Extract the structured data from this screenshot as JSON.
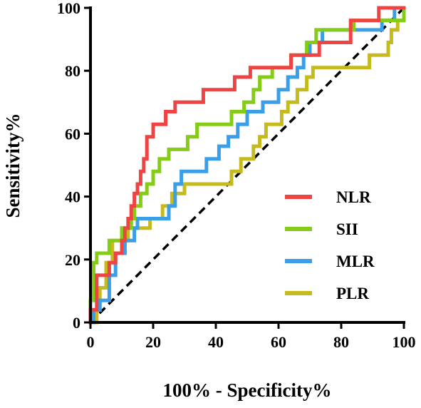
{
  "chart_data": {
    "type": "line",
    "title": "",
    "xlabel": "100% - Specificity%",
    "ylabel": "Sensitivity%",
    "xlim": [
      0,
      100
    ],
    "ylim": [
      0,
      100
    ],
    "x_ticks": [
      "0",
      "20",
      "40",
      "60",
      "80",
      "100"
    ],
    "y_ticks": [
      "0",
      "20",
      "40",
      "60",
      "80",
      "100"
    ],
    "grid": false,
    "legend_position": "bottom-right",
    "reference_line": {
      "style": "dashed",
      "color": "#000000",
      "from": [
        0,
        0
      ],
      "to": [
        100,
        100
      ]
    },
    "series": [
      {
        "name": "NLR",
        "color": "#ef4444",
        "points": [
          [
            0,
            0
          ],
          [
            0,
            4
          ],
          [
            2,
            4
          ],
          [
            2,
            15
          ],
          [
            6,
            15
          ],
          [
            6,
            19
          ],
          [
            8,
            19
          ],
          [
            8,
            22
          ],
          [
            10,
            22
          ],
          [
            10,
            26
          ],
          [
            11,
            26
          ],
          [
            11,
            30
          ],
          [
            12,
            30
          ],
          [
            12,
            33
          ],
          [
            13,
            33
          ],
          [
            13,
            37
          ],
          [
            14,
            37
          ],
          [
            14,
            41
          ],
          [
            15,
            41
          ],
          [
            15,
            44
          ],
          [
            16,
            44
          ],
          [
            16,
            48
          ],
          [
            17,
            48
          ],
          [
            17,
            52
          ],
          [
            18,
            52
          ],
          [
            18,
            59
          ],
          [
            20,
            59
          ],
          [
            20,
            63
          ],
          [
            24,
            63
          ],
          [
            24,
            67
          ],
          [
            27,
            67
          ],
          [
            27,
            70
          ],
          [
            36,
            70
          ],
          [
            36,
            74
          ],
          [
            46,
            74
          ],
          [
            46,
            78
          ],
          [
            51,
            78
          ],
          [
            51,
            81
          ],
          [
            64,
            81
          ],
          [
            64,
            85
          ],
          [
            73,
            85
          ],
          [
            73,
            89
          ],
          [
            83,
            89
          ],
          [
            83,
            96
          ],
          [
            92,
            96
          ],
          [
            92,
            100
          ],
          [
            100,
            100
          ]
        ]
      },
      {
        "name": "SII",
        "color": "#84cc16",
        "points": [
          [
            0,
            0
          ],
          [
            0,
            7
          ],
          [
            1,
            7
          ],
          [
            1,
            19
          ],
          [
            2,
            19
          ],
          [
            2,
            22
          ],
          [
            6,
            22
          ],
          [
            6,
            26
          ],
          [
            10,
            26
          ],
          [
            10,
            30
          ],
          [
            13,
            30
          ],
          [
            13,
            33
          ],
          [
            14,
            33
          ],
          [
            14,
            37
          ],
          [
            16,
            37
          ],
          [
            16,
            41
          ],
          [
            18,
            41
          ],
          [
            18,
            44
          ],
          [
            20,
            44
          ],
          [
            20,
            48
          ],
          [
            22,
            48
          ],
          [
            22,
            52
          ],
          [
            25,
            52
          ],
          [
            25,
            55
          ],
          [
            31,
            55
          ],
          [
            31,
            59
          ],
          [
            34,
            59
          ],
          [
            34,
            63
          ],
          [
            45,
            63
          ],
          [
            45,
            67
          ],
          [
            49,
            67
          ],
          [
            49,
            70
          ],
          [
            52,
            70
          ],
          [
            52,
            74
          ],
          [
            54,
            74
          ],
          [
            54,
            78
          ],
          [
            58,
            78
          ],
          [
            58,
            81
          ],
          [
            64,
            81
          ],
          [
            64,
            85
          ],
          [
            69,
            85
          ],
          [
            69,
            89
          ],
          [
            72,
            89
          ],
          [
            72,
            93
          ],
          [
            84,
            93
          ],
          [
            84,
            96
          ],
          [
            100,
            96
          ],
          [
            100,
            100
          ]
        ]
      },
      {
        "name": "MLR",
        "color": "#3b9fe8",
        "points": [
          [
            0,
            0
          ],
          [
            1,
            0
          ],
          [
            1,
            4
          ],
          [
            3,
            4
          ],
          [
            3,
            7
          ],
          [
            6,
            7
          ],
          [
            6,
            15
          ],
          [
            8,
            15
          ],
          [
            8,
            22
          ],
          [
            11,
            22
          ],
          [
            11,
            26
          ],
          [
            14,
            26
          ],
          [
            14,
            30
          ],
          [
            15,
            30
          ],
          [
            15,
            33
          ],
          [
            25,
            33
          ],
          [
            25,
            37
          ],
          [
            27,
            37
          ],
          [
            27,
            44
          ],
          [
            29,
            44
          ],
          [
            29,
            48
          ],
          [
            37,
            48
          ],
          [
            37,
            52
          ],
          [
            41,
            52
          ],
          [
            41,
            56
          ],
          [
            44,
            56
          ],
          [
            44,
            59
          ],
          [
            47,
            59
          ],
          [
            47,
            63
          ],
          [
            50,
            63
          ],
          [
            50,
            67
          ],
          [
            55,
            67
          ],
          [
            55,
            70
          ],
          [
            60,
            70
          ],
          [
            60,
            74
          ],
          [
            63,
            74
          ],
          [
            63,
            78
          ],
          [
            66,
            78
          ],
          [
            66,
            81
          ],
          [
            68,
            81
          ],
          [
            68,
            85
          ],
          [
            70,
            85
          ],
          [
            70,
            89
          ],
          [
            74,
            89
          ],
          [
            74,
            93
          ],
          [
            93,
            93
          ],
          [
            93,
            96
          ],
          [
            97,
            96
          ],
          [
            97,
            100
          ],
          [
            100,
            100
          ]
        ]
      },
      {
        "name": "PLR",
        "color": "#c5bb1c",
        "points": [
          [
            0,
            0
          ],
          [
            2,
            0
          ],
          [
            2,
            4
          ],
          [
            3,
            4
          ],
          [
            3,
            11
          ],
          [
            5,
            11
          ],
          [
            5,
            19
          ],
          [
            7,
            19
          ],
          [
            7,
            26
          ],
          [
            12,
            26
          ],
          [
            12,
            30
          ],
          [
            19,
            30
          ],
          [
            19,
            33
          ],
          [
            23,
            33
          ],
          [
            23,
            37
          ],
          [
            26,
            37
          ],
          [
            26,
            41
          ],
          [
            30,
            41
          ],
          [
            30,
            44
          ],
          [
            45,
            44
          ],
          [
            45,
            48
          ],
          [
            48,
            48
          ],
          [
            48,
            52
          ],
          [
            52,
            52
          ],
          [
            52,
            56
          ],
          [
            54,
            56
          ],
          [
            54,
            59
          ],
          [
            56,
            59
          ],
          [
            56,
            63
          ],
          [
            61,
            63
          ],
          [
            61,
            67
          ],
          [
            63,
            67
          ],
          [
            63,
            70
          ],
          [
            66,
            70
          ],
          [
            66,
            74
          ],
          [
            69,
            74
          ],
          [
            69,
            78
          ],
          [
            71,
            78
          ],
          [
            71,
            81
          ],
          [
            89,
            81
          ],
          [
            89,
            85
          ],
          [
            95,
            85
          ],
          [
            95,
            89
          ],
          [
            96,
            89
          ],
          [
            96,
            93
          ],
          [
            98,
            93
          ],
          [
            98,
            96
          ],
          [
            100,
            96
          ],
          [
            100,
            100
          ]
        ]
      }
    ]
  }
}
